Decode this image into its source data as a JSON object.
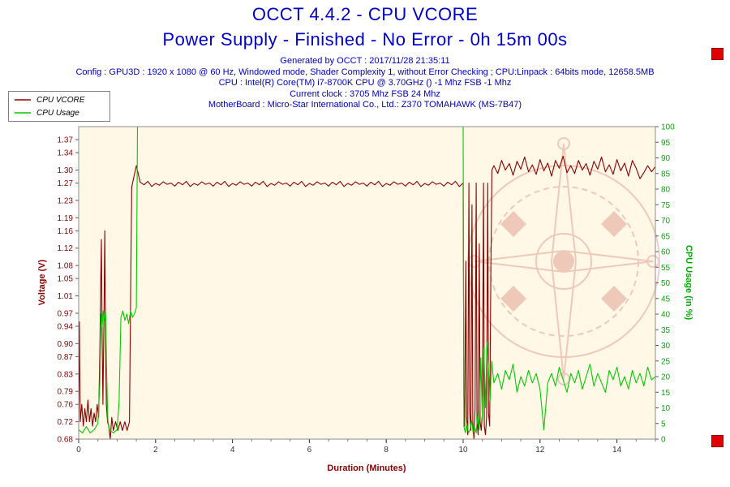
{
  "header": {
    "info_lines": [
      "Generated by OCCT : 2017/11/28 21:35:11",
      "Config : GPU3D : 1920 x 1080 @ 60 Hz, Windowed mode, Shader Complexity 1, without Error Checking ; CPU:Linpack : 64bits mode, 12658.5MB",
      "CPU : Intel(R) Core(TM) i7-8700K CPU @ 3.70GHz () -1 Mhz FSB -1 Mhz",
      "Current clock : 3705 Mhz FSB 24 Mhz",
      "MotherBoard : Micro-Star International Co., Ltd.: Z370 TOMAHAWK (MS-7B47)"
    ]
  },
  "legend": {
    "items": [
      {
        "label": "CPU VCORE",
        "color": "#8B0000"
      },
      {
        "label": "CPU Usage",
        "color": "#00CC00"
      }
    ]
  },
  "decorations": {
    "scroll_button_color": "#E00000"
  },
  "chart_data": {
    "type": "line",
    "title": "OCCT 4.4.2 - CPU VCORE",
    "subtitle": "Power Supply - Finished - No Error - 0h 15m 00s",
    "xlabel": "Duration (Minutes)",
    "background": "#FFF8E7",
    "grid": false,
    "legend_position": "top-left",
    "axes": {
      "x": {
        "label": "Duration (Minutes)",
        "min": 0,
        "max": 15,
        "major_ticks": [
          0,
          2,
          4,
          6,
          8,
          10,
          12,
          14
        ],
        "minor_step": 0.5,
        "label_color": "#8B0000",
        "tick_color": "#333333"
      },
      "left": {
        "label": "Voltage (V)",
        "min": 0.68,
        "max": 1.4,
        "color": "#8B0000",
        "ticks": [
          "1.37",
          "1.34",
          "1.30",
          "1.27",
          "1.23",
          "1.19",
          "1.16",
          "1.12",
          "1.08",
          "1.05",
          "1.01",
          "0.97",
          "0.94",
          "0.90",
          "0.87",
          "0.83",
          "0.79",
          "0.76",
          "0.72",
          "0.68"
        ]
      },
      "right": {
        "label": "CPU Usage (in %)",
        "min": 0,
        "max": 100,
        "color": "#00AA00",
        "ticks": [
          "100",
          "95",
          "90",
          "85",
          "80",
          "75",
          "70",
          "65",
          "60",
          "55",
          "50",
          "45",
          "40",
          "35",
          "30",
          "25",
          "20",
          "15",
          "10",
          "5",
          "0"
        ]
      }
    },
    "series": [
      {
        "name": "CPU VCORE",
        "axis": "left",
        "color": "#8B0000",
        "points": [
          [
            0,
            0.74
          ],
          [
            0.02,
            0.95
          ],
          [
            0.04,
            0.72
          ],
          [
            0.08,
            0.76
          ],
          [
            0.12,
            0.71
          ],
          [
            0.16,
            0.75
          ],
          [
            0.2,
            0.72
          ],
          [
            0.24,
            0.77
          ],
          [
            0.28,
            0.72
          ],
          [
            0.32,
            0.75
          ],
          [
            0.36,
            0.71
          ],
          [
            0.4,
            0.74
          ],
          [
            0.44,
            0.72
          ],
          [
            0.48,
            0.76
          ],
          [
            0.52,
            0.73
          ],
          [
            0.55,
            0.88
          ],
          [
            0.57,
            1.02
          ],
          [
            0.59,
            1.14
          ],
          [
            0.61,
            0.92
          ],
          [
            0.63,
            0.76
          ],
          [
            0.66,
            0.98
          ],
          [
            0.68,
            1.16
          ],
          [
            0.7,
            0.89
          ],
          [
            0.72,
            0.76
          ],
          [
            0.75,
            0.72
          ],
          [
            0.78,
            0.71
          ],
          [
            0.82,
            0.68
          ],
          [
            0.86,
            0.73
          ],
          [
            0.9,
            0.7
          ],
          [
            0.96,
            0.72
          ],
          [
            1.02,
            0.7
          ],
          [
            1.08,
            0.72
          ],
          [
            1.14,
            0.7
          ],
          [
            1.2,
            0.72
          ],
          [
            1.26,
            0.7
          ],
          [
            1.32,
            0.72
          ],
          [
            1.36,
            1.1
          ],
          [
            1.38,
            1.26
          ],
          [
            1.4,
            1.27
          ],
          [
            1.5,
            1.31
          ],
          [
            1.6,
            1.272
          ],
          [
            1.7,
            1.266
          ],
          [
            1.8,
            1.274
          ],
          [
            1.9,
            1.262
          ],
          [
            2,
            1.269
          ],
          [
            2.1,
            1.265
          ],
          [
            2.2,
            1.273
          ],
          [
            2.3,
            1.267
          ],
          [
            2.4,
            1.27
          ],
          [
            2.5,
            1.263
          ],
          [
            2.6,
            1.272
          ],
          [
            2.7,
            1.266
          ],
          [
            2.8,
            1.274
          ],
          [
            2.9,
            1.262
          ],
          [
            3,
            1.269
          ],
          [
            3.1,
            1.265
          ],
          [
            3.2,
            1.273
          ],
          [
            3.3,
            1.267
          ],
          [
            3.4,
            1.27
          ],
          [
            3.5,
            1.263
          ],
          [
            3.6,
            1.272
          ],
          [
            3.7,
            1.266
          ],
          [
            3.8,
            1.274
          ],
          [
            3.9,
            1.262
          ],
          [
            4,
            1.269
          ],
          [
            4.1,
            1.265
          ],
          [
            4.2,
            1.273
          ],
          [
            4.3,
            1.267
          ],
          [
            4.4,
            1.27
          ],
          [
            4.5,
            1.263
          ],
          [
            4.6,
            1.272
          ],
          [
            4.7,
            1.266
          ],
          [
            4.8,
            1.274
          ],
          [
            4.9,
            1.262
          ],
          [
            5,
            1.269
          ],
          [
            5.1,
            1.265
          ],
          [
            5.2,
            1.273
          ],
          [
            5.3,
            1.267
          ],
          [
            5.4,
            1.27
          ],
          [
            5.5,
            1.263
          ],
          [
            5.6,
            1.272
          ],
          [
            5.7,
            1.266
          ],
          [
            5.8,
            1.274
          ],
          [
            5.9,
            1.262
          ],
          [
            6,
            1.269
          ],
          [
            6.1,
            1.265
          ],
          [
            6.2,
            1.273
          ],
          [
            6.3,
            1.267
          ],
          [
            6.4,
            1.27
          ],
          [
            6.5,
            1.263
          ],
          [
            6.6,
            1.272
          ],
          [
            6.7,
            1.266
          ],
          [
            6.8,
            1.274
          ],
          [
            6.9,
            1.262
          ],
          [
            7,
            1.269
          ],
          [
            7.1,
            1.265
          ],
          [
            7.2,
            1.273
          ],
          [
            7.3,
            1.267
          ],
          [
            7.4,
            1.27
          ],
          [
            7.5,
            1.263
          ],
          [
            7.6,
            1.272
          ],
          [
            7.7,
            1.266
          ],
          [
            7.8,
            1.274
          ],
          [
            7.9,
            1.262
          ],
          [
            8,
            1.269
          ],
          [
            8.1,
            1.265
          ],
          [
            8.2,
            1.273
          ],
          [
            8.3,
            1.267
          ],
          [
            8.4,
            1.27
          ],
          [
            8.5,
            1.263
          ],
          [
            8.6,
            1.272
          ],
          [
            8.7,
            1.266
          ],
          [
            8.8,
            1.274
          ],
          [
            8.9,
            1.262
          ],
          [
            9,
            1.269
          ],
          [
            9.1,
            1.265
          ],
          [
            9.2,
            1.273
          ],
          [
            9.3,
            1.267
          ],
          [
            9.4,
            1.27
          ],
          [
            9.5,
            1.263
          ],
          [
            9.6,
            1.272
          ],
          [
            9.7,
            1.266
          ],
          [
            9.8,
            1.274
          ],
          [
            9.9,
            1.262
          ],
          [
            10,
            1.27
          ],
          [
            10.02,
            0.78
          ],
          [
            10.04,
            0.71
          ],
          [
            10.07,
            1.09
          ],
          [
            10.09,
            0.73
          ],
          [
            10.12,
            0.69
          ],
          [
            10.15,
            1.27
          ],
          [
            10.17,
            0.74
          ],
          [
            10.2,
            0.7
          ],
          [
            10.23,
            1.22
          ],
          [
            10.25,
            0.72
          ],
          [
            10.28,
            0.68
          ],
          [
            10.31,
            0.75
          ],
          [
            10.34,
            1.27
          ],
          [
            10.36,
            0.72
          ],
          [
            10.39,
            0.69
          ],
          [
            10.42,
            1.13
          ],
          [
            10.44,
            0.72
          ],
          [
            10.47,
            0.7
          ],
          [
            10.5,
            0.74
          ],
          [
            10.53,
            1.27
          ],
          [
            10.55,
            0.71
          ],
          [
            10.58,
            0.69
          ],
          [
            10.61,
            0.73
          ],
          [
            10.64,
            1.27
          ],
          [
            10.66,
            0.74
          ],
          [
            10.69,
            0.71
          ],
          [
            10.72,
            1.05
          ],
          [
            10.75,
            1.3
          ],
          [
            10.8,
            1.31
          ],
          [
            10.9,
            1.292
          ],
          [
            11,
            1.322
          ],
          [
            11.1,
            1.3
          ],
          [
            11.2,
            1.315
          ],
          [
            11.3,
            1.288
          ],
          [
            11.4,
            1.32
          ],
          [
            11.5,
            1.302
          ],
          [
            11.6,
            1.33
          ],
          [
            11.7,
            1.296
          ],
          [
            11.8,
            1.312
          ],
          [
            11.9,
            1.29
          ],
          [
            12,
            1.324
          ],
          [
            12.1,
            1.298
          ],
          [
            12.2,
            1.316
          ],
          [
            12.3,
            1.286
          ],
          [
            12.4,
            1.322
          ],
          [
            12.5,
            1.304
          ],
          [
            12.6,
            1.332
          ],
          [
            12.7,
            1.294
          ],
          [
            12.8,
            1.31
          ],
          [
            12.9,
            1.292
          ],
          [
            13,
            1.322
          ],
          [
            13.1,
            1.3
          ],
          [
            13.2,
            1.315
          ],
          [
            13.3,
            1.288
          ],
          [
            13.4,
            1.32
          ],
          [
            13.5,
            1.302
          ],
          [
            13.6,
            1.33
          ],
          [
            13.7,
            1.296
          ],
          [
            13.8,
            1.312
          ],
          [
            13.9,
            1.29
          ],
          [
            14,
            1.324
          ],
          [
            14.1,
            1.298
          ],
          [
            14.2,
            1.316
          ],
          [
            14.3,
            1.286
          ],
          [
            14.4,
            1.322
          ],
          [
            14.5,
            1.304
          ],
          [
            14.6,
            1.28
          ],
          [
            14.7,
            1.294
          ],
          [
            14.8,
            1.31
          ],
          [
            14.9,
            1.296
          ],
          [
            15,
            1.308
          ]
        ]
      },
      {
        "name": "CPU Usage",
        "axis": "right",
        "color": "#00CC00",
        "points": [
          [
            0,
            3
          ],
          [
            0.1,
            2
          ],
          [
            0.2,
            4
          ],
          [
            0.3,
            2
          ],
          [
            0.4,
            3
          ],
          [
            0.5,
            5
          ],
          [
            0.55,
            18
          ],
          [
            0.58,
            40
          ],
          [
            0.61,
            36
          ],
          [
            0.64,
            41
          ],
          [
            0.67,
            38
          ],
          [
            0.7,
            41
          ],
          [
            0.73,
            20
          ],
          [
            0.76,
            6
          ],
          [
            0.8,
            3
          ],
          [
            0.9,
            2
          ],
          [
            1,
            3
          ],
          [
            1.05,
            12
          ],
          [
            1.1,
            39
          ],
          [
            1.15,
            41
          ],
          [
            1.2,
            38
          ],
          [
            1.25,
            40
          ],
          [
            1.3,
            37
          ],
          [
            1.35,
            41
          ],
          [
            1.4,
            39
          ],
          [
            1.45,
            40
          ],
          [
            1.5,
            42
          ],
          [
            1.53,
            100
          ],
          [
            10,
            100
          ],
          [
            10.02,
            4
          ],
          [
            10.06,
            2
          ],
          [
            10.1,
            5
          ],
          [
            10.14,
            2
          ],
          [
            10.18,
            3
          ],
          [
            10.22,
            6
          ],
          [
            10.26,
            2
          ],
          [
            10.3,
            4
          ],
          [
            10.34,
            2
          ],
          [
            10.38,
            8
          ],
          [
            10.42,
            3
          ],
          [
            10.46,
            26
          ],
          [
            10.5,
            6
          ],
          [
            10.54,
            29
          ],
          [
            10.58,
            10
          ],
          [
            10.62,
            31
          ],
          [
            10.66,
            22
          ],
          [
            10.7,
            12
          ],
          [
            10.74,
            25
          ],
          [
            10.8,
            18
          ],
          [
            10.9,
            21
          ],
          [
            11,
            16
          ],
          [
            11.1,
            22
          ],
          [
            11.2,
            19
          ],
          [
            11.3,
            24
          ],
          [
            11.4,
            15
          ],
          [
            11.5,
            20
          ],
          [
            11.6,
            17
          ],
          [
            11.7,
            22
          ],
          [
            11.8,
            18
          ],
          [
            11.9,
            21
          ],
          [
            12,
            16
          ],
          [
            12.1,
            3
          ],
          [
            12.2,
            18
          ],
          [
            12.3,
            21
          ],
          [
            12.4,
            17
          ],
          [
            12.5,
            23
          ],
          [
            12.6,
            19
          ],
          [
            12.7,
            15
          ],
          [
            12.8,
            21
          ],
          [
            12.9,
            18
          ],
          [
            13,
            22
          ],
          [
            13.1,
            16
          ],
          [
            13.2,
            20
          ],
          [
            13.3,
            24
          ],
          [
            13.4,
            17
          ],
          [
            13.5,
            21
          ],
          [
            13.6,
            18
          ],
          [
            13.7,
            15
          ],
          [
            13.8,
            22
          ],
          [
            13.9,
            19
          ],
          [
            14,
            23
          ],
          [
            14.1,
            17
          ],
          [
            14.2,
            20
          ],
          [
            14.3,
            16
          ],
          [
            14.4,
            22
          ],
          [
            14.5,
            18
          ],
          [
            14.6,
            21
          ],
          [
            14.7,
            17
          ],
          [
            14.8,
            23
          ],
          [
            14.9,
            19
          ],
          [
            15,
            20
          ]
        ]
      }
    ]
  }
}
